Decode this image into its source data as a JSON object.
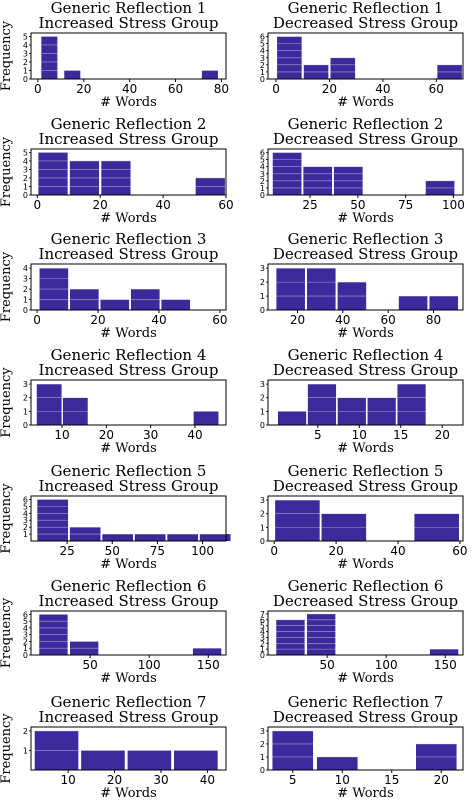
{
  "figure": {
    "bar_color": "#3c2a9c",
    "grid_color": "#ffffff"
  },
  "chart_data": [
    {
      "type": "bar",
      "title": [
        "Generic Reflection 1",
        "Increased Stress Group"
      ],
      "xlabel": "# Words",
      "ylabel": "Frequency",
      "xlim": [
        -3,
        82
      ],
      "ylim": [
        0,
        5.4
      ],
      "xticks": [
        0,
        20,
        40,
        60,
        80
      ],
      "yticks": [
        0,
        1,
        2,
        3,
        4,
        5
      ],
      "bar_width": 7,
      "x": [
        5,
        15,
        75
      ],
      "values": [
        5,
        1,
        1
      ]
    },
    {
      "type": "bar",
      "title": [
        "Generic Reflection 1",
        "Decreased Stress Group"
      ],
      "xlabel": "# Words",
      "ylabel": "",
      "xlim": [
        -3,
        70
      ],
      "ylim": [
        0,
        6.5
      ],
      "xticks": [
        0,
        20,
        40,
        60
      ],
      "yticks": [
        0,
        1,
        2,
        3,
        4,
        5,
        6
      ],
      "bar_width": 9.2,
      "x": [
        5,
        15,
        25,
        35,
        45,
        55,
        65
      ],
      "values": [
        6,
        2,
        3,
        0,
        0,
        0,
        2
      ]
    },
    {
      "type": "bar",
      "title": [
        "Generic Reflection 2",
        "Increased Stress Group"
      ],
      "xlabel": "# Words",
      "ylabel": "Frequency",
      "xlim": [
        -2,
        60
      ],
      "ylim": [
        0,
        5.4
      ],
      "xticks": [
        0,
        20,
        40,
        60
      ],
      "yticks": [
        0,
        1,
        2,
        3,
        4,
        5
      ],
      "bar_width": 9.3,
      "x": [
        5,
        15,
        25,
        35,
        45,
        55
      ],
      "values": [
        5,
        4,
        4,
        0,
        0,
        2
      ]
    },
    {
      "type": "bar",
      "title": [
        "Generic Reflection 2",
        "Decreased Stress Group"
      ],
      "xlabel": "# Words",
      "ylabel": "",
      "xlim": [
        3,
        105
      ],
      "ylim": [
        0,
        6.5
      ],
      "xticks": [
        25,
        50,
        75,
        100
      ],
      "yticks": [
        0,
        1,
        2,
        3,
        4,
        5,
        6
      ],
      "bar_width": 15,
      "x": [
        13,
        29,
        45,
        61,
        77,
        93
      ],
      "values": [
        6,
        4,
        4,
        0,
        0,
        2
      ]
    },
    {
      "type": "bar",
      "title": [
        "Generic Reflection 3",
        "Increased Stress Group"
      ],
      "xlabel": "# Words",
      "ylabel": "Frequency",
      "xlim": [
        -2,
        62
      ],
      "ylim": [
        0,
        4.4
      ],
      "xticks": [
        0,
        20,
        40,
        60
      ],
      "yticks": [
        0,
        1,
        2,
        3,
        4
      ],
      "bar_width": 9.4,
      "x": [
        5.5,
        15.5,
        25.5,
        35.5,
        45.5,
        55.5
      ],
      "values": [
        4,
        2,
        1,
        2,
        1,
        0
      ]
    },
    {
      "type": "bar",
      "title": [
        "Generic Reflection 3",
        "Decreased Stress Group"
      ],
      "xlabel": "# Words",
      "ylabel": "",
      "xlim": [
        7,
        93
      ],
      "ylim": [
        0,
        3.3
      ],
      "xticks": [
        20,
        40,
        60,
        80
      ],
      "yticks": [
        0,
        1,
        2,
        3
      ],
      "bar_width": 12.6,
      "x": [
        17,
        30.5,
        44,
        57.5,
        71,
        84.5
      ],
      "values": [
        3,
        3,
        2,
        0,
        1,
        1
      ]
    },
    {
      "type": "bar",
      "title": [
        "Generic Reflection 4",
        "Increased Stress Group"
      ],
      "xlabel": "# Words",
      "ylabel": "Frequency",
      "xlim": [
        3,
        47
      ],
      "ylim": [
        0,
        3.3
      ],
      "xticks": [
        10,
        20,
        30,
        40
      ],
      "yticks": [
        0,
        1,
        2,
        3
      ],
      "bar_width": 5.6,
      "x": [
        7.1,
        13,
        18.9,
        24.8,
        30.7,
        36.6,
        42.5
      ],
      "values": [
        3,
        2,
        0,
        0,
        0,
        0,
        1
      ]
    },
    {
      "type": "bar",
      "title": [
        "Generic Reflection 4",
        "Decreased Stress Group"
      ],
      "xlabel": "# Words",
      "ylabel": "",
      "xlim": [
        -1,
        22.5
      ],
      "ylim": [
        0,
        3.3
      ],
      "xticks": [
        5,
        10,
        15,
        20
      ],
      "yticks": [
        0,
        1,
        2,
        3
      ],
      "bar_width": 3.4,
      "x": [
        1.9,
        5.5,
        9.1,
        12.7,
        16.3,
        19.9
      ],
      "values": [
        1,
        3,
        2,
        2,
        3,
        0
      ]
    },
    {
      "type": "bar",
      "title": [
        "Generic Reflection 5",
        "Increased Stress Group"
      ],
      "xlabel": "# Words",
      "ylabel": "Frequency",
      "xlim": [
        5,
        113
      ],
      "ylim": [
        0,
        6.5
      ],
      "xticks": [
        25,
        50,
        75,
        100
      ],
      "yticks": [
        1,
        2,
        3,
        4,
        5,
        6
      ],
      "bar_width": 17,
      "x": [
        17,
        35,
        53,
        71,
        89,
        107
      ],
      "values": [
        6,
        2,
        1,
        1,
        1,
        1
      ]
    },
    {
      "type": "bar",
      "title": [
        "Generic Reflection 5",
        "Decreased Stress Group"
      ],
      "xlabel": "# Words",
      "ylabel": "",
      "xlim": [
        -2,
        61
      ],
      "ylim": [
        0,
        3.3
      ],
      "xticks": [
        0,
        20,
        40,
        60
      ],
      "yticks": [
        0,
        1,
        2,
        3
      ],
      "bar_width": 14.4,
      "x": [
        7.5,
        22.5,
        37.5,
        52.5
      ],
      "values": [
        3,
        2,
        0,
        2
      ]
    },
    {
      "type": "bar",
      "title": [
        "Generic Reflection 6",
        "Increased Stress Group"
      ],
      "xlabel": "# Words",
      "ylabel": "Frequency",
      "xlim": [
        0,
        165
      ],
      "ylim": [
        0,
        6.5
      ],
      "xticks": [
        50,
        100,
        150
      ],
      "yticks": [
        0,
        1,
        2,
        3,
        4,
        5,
        6
      ],
      "bar_width": 24,
      "x": [
        19,
        45,
        71,
        97,
        123,
        149
      ],
      "values": [
        6,
        2,
        0,
        0,
        0,
        1
      ]
    },
    {
      "type": "bar",
      "title": [
        "Generic Reflection 6",
        "Decreased Stress Group"
      ],
      "xlabel": "# Words",
      "ylabel": "",
      "xlim": [
        0,
        165
      ],
      "ylim": [
        0,
        7.5
      ],
      "xticks": [
        50,
        100,
        150
      ],
      "yticks": [
        0,
        1,
        2,
        3,
        4,
        5,
        6,
        7
      ],
      "bar_width": 24,
      "x": [
        19,
        45,
        71,
        97,
        123,
        149
      ],
      "values": [
        6,
        7,
        0,
        0,
        0,
        1
      ]
    },
    {
      "type": "bar",
      "title": [
        "Generic Reflection 7",
        "Increased Stress Group"
      ],
      "xlabel": "# Words",
      "ylabel": "Frequency",
      "xlim": [
        2,
        44
      ],
      "ylim": [
        0,
        2.2
      ],
      "xticks": [
        10,
        20,
        30,
        40
      ],
      "yticks": [
        1,
        2
      ],
      "bar_width": 9.4,
      "x": [
        7.5,
        17.5,
        27.5,
        37.5
      ],
      "values": [
        2,
        1,
        1,
        1
      ]
    },
    {
      "type": "bar",
      "title": [
        "Generic Reflection 7",
        "Decreased Stress Group"
      ],
      "xlabel": "# Words",
      "ylabel": "",
      "xlim": [
        2.5,
        22.2
      ],
      "ylim": [
        0,
        3.3
      ],
      "xticks": [
        5,
        10,
        15,
        20
      ],
      "yticks": [
        0,
        1,
        2,
        3
      ],
      "bar_width": 4.1,
      "x": [
        5,
        9.5,
        14,
        19.5
      ],
      "values": [
        3,
        1,
        0,
        2
      ]
    }
  ]
}
